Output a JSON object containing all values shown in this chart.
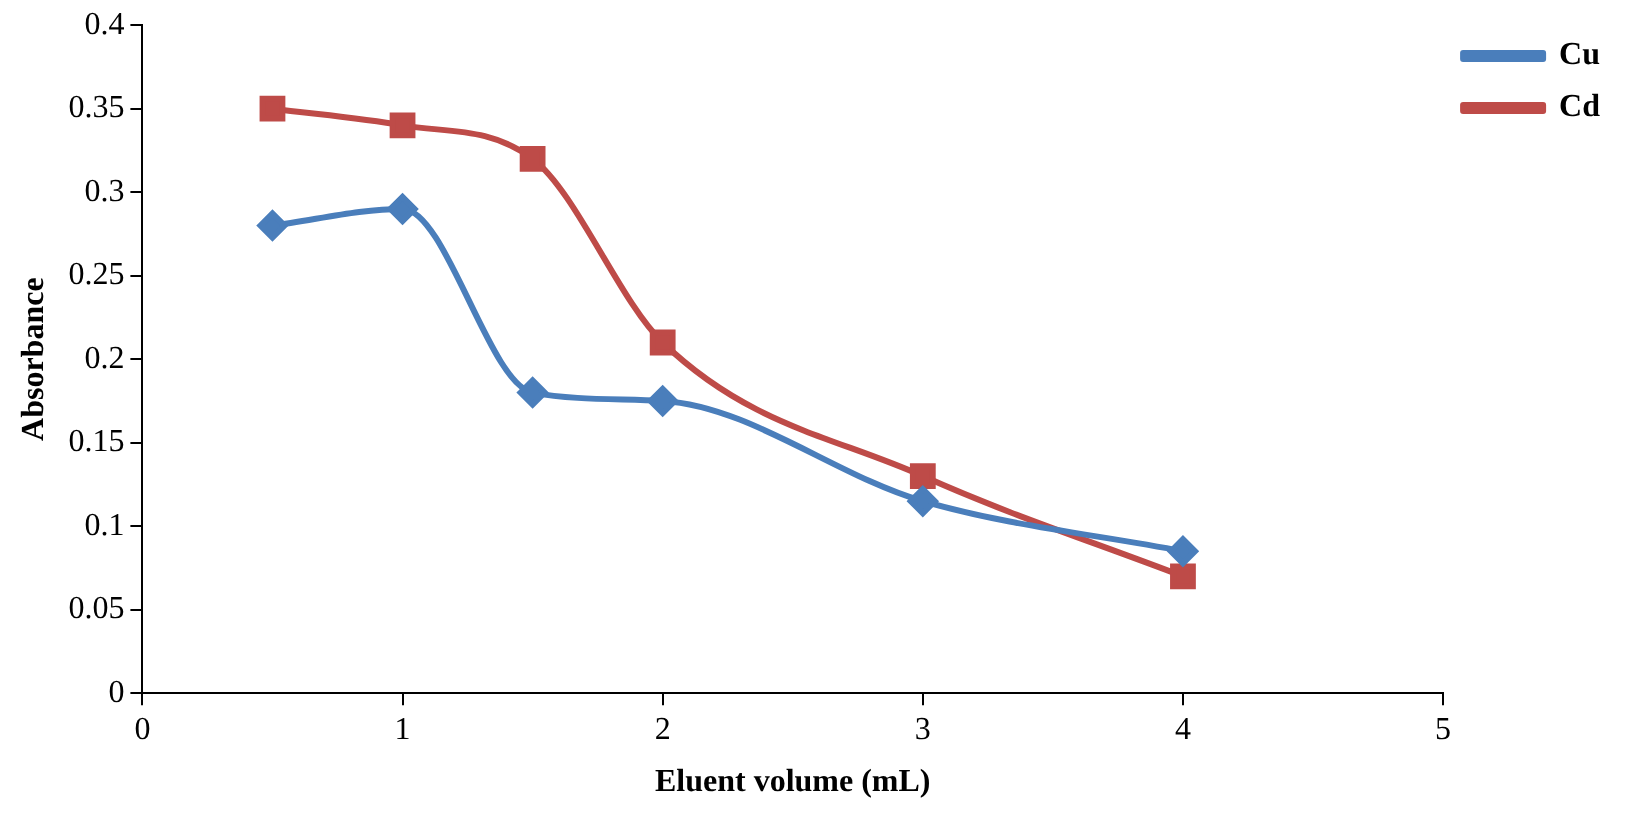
{
  "chart_data": {
    "type": "line",
    "xlabel": "Eluent volume (mL)",
    "ylabel": "Absorbance",
    "xlim": [
      0,
      5
    ],
    "xticks": [
      0,
      1,
      2,
      3,
      4,
      5
    ],
    "ylim": [
      0,
      0.4
    ],
    "yticks": [
      0,
      0.05,
      0.1,
      0.15,
      0.2,
      0.25,
      0.3,
      0.35,
      0.4
    ],
    "grid": false,
    "legend": "top right",
    "line_style": "solid",
    "series": [
      {
        "name": "Cu",
        "color": "#4a7ebb",
        "marker": "diamond",
        "x": [
          0.5,
          1,
          1.5,
          2,
          3,
          4
        ],
        "values": [
          0.28,
          0.29,
          0.18,
          0.175,
          0.115,
          0.085
        ]
      },
      {
        "name": "Cd",
        "color": "#be4b48",
        "marker": "square",
        "x": [
          0.5,
          1,
          1.5,
          2,
          3,
          4
        ],
        "values": [
          0.35,
          0.34,
          0.32,
          0.21,
          0.13,
          0.07
        ]
      }
    ]
  }
}
